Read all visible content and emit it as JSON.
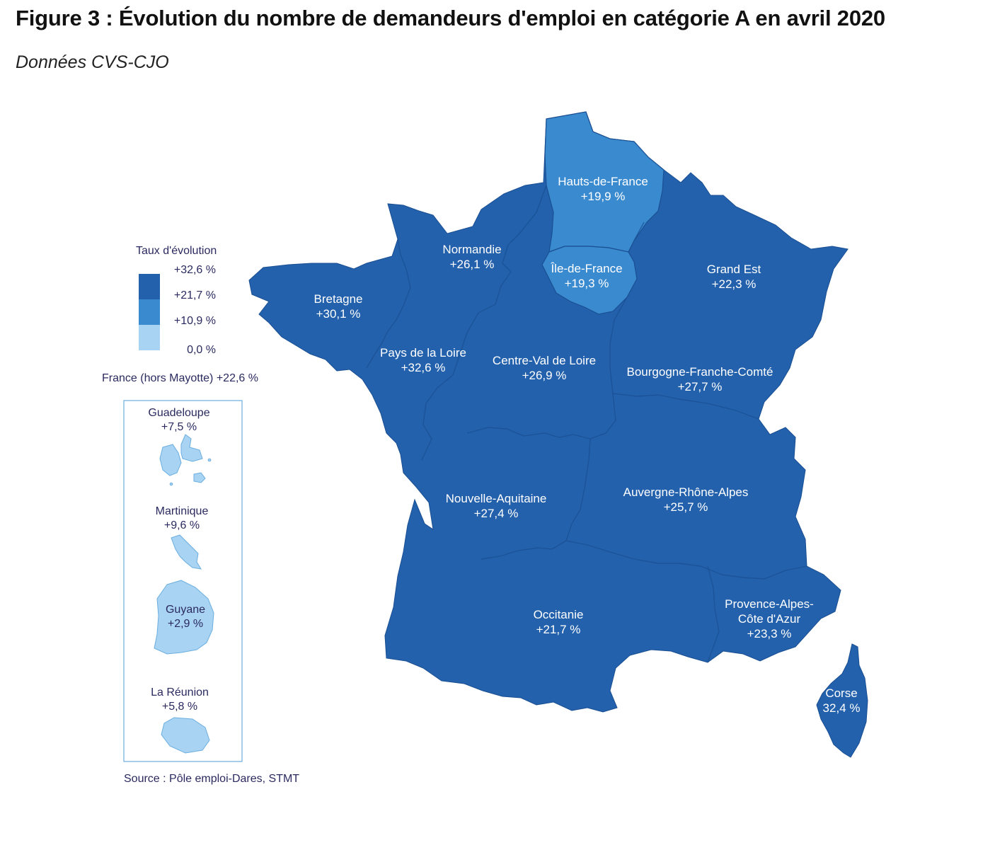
{
  "title": "Figure 3 : Évolution du nombre de demandeurs d'emploi en catégorie A en avril 2020",
  "subtitle": "Données CVS-CJO",
  "colors": {
    "dark": "#2361AD",
    "medium": "#3A8AD0",
    "light": "#A9D3F2",
    "border": "#1a4f92",
    "domBorder": "#6aaee0",
    "text": "#2a2a60"
  },
  "legend": {
    "title": "Taux d'évolution",
    "breaks": [
      "+32,6 %",
      "+21,7 %",
      "+10,9 %",
      "0,0 %"
    ],
    "national": "France (hors Mayotte) +22,6 %"
  },
  "regions": [
    {
      "name": "Hauts-de-France",
      "value": "+19,9 %"
    },
    {
      "name": "Normandie",
      "value": "+26,1 %"
    },
    {
      "name": "Île-de-France",
      "value": "+19,3 %"
    },
    {
      "name": "Grand Est",
      "value": "+22,3 %"
    },
    {
      "name": "Bretagne",
      "value": "+30,1 %"
    },
    {
      "name": "Pays de la Loire",
      "value": "+32,6 %"
    },
    {
      "name": "Centre-Val de Loire",
      "value": "+26,9 %"
    },
    {
      "name": "Bourgogne-Franche-Comté",
      "value": "+27,7 %"
    },
    {
      "name": "Nouvelle-Aquitaine",
      "value": "+27,4 %"
    },
    {
      "name": "Auvergne-Rhône-Alpes",
      "value": "+25,7 %"
    },
    {
      "name": "Occitanie",
      "value": "+21,7 %"
    },
    {
      "name": "Provence-Alpes-Côte d'Azur",
      "line1": "Provence-Alpes-",
      "line2": "Côte d'Azur",
      "value": "+23,3 %"
    },
    {
      "name": "Corse",
      "value": "32,4 %"
    }
  ],
  "overseas": [
    {
      "name": "Guadeloupe",
      "value": "+7,5 %"
    },
    {
      "name": "Martinique",
      "value": "+9,6 %"
    },
    {
      "name": "Guyane",
      "value": "+2,9 %"
    },
    {
      "name": "La Réunion",
      "value": "+5,8 %"
    }
  ],
  "source": "Source : Pôle emploi-Dares, STMT"
}
